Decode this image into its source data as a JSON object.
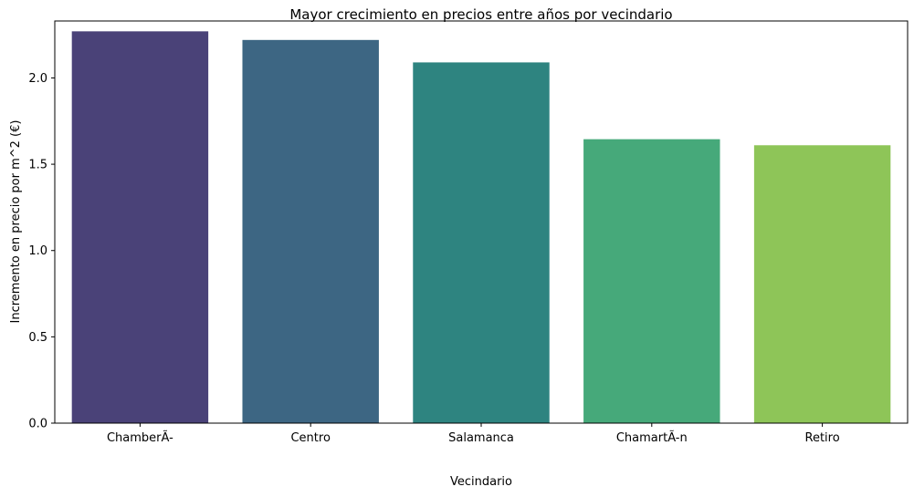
{
  "chart_data": {
    "type": "bar",
    "title": "Mayor crecimiento en precios entre años por vecindario",
    "xlabel": "Vecindario",
    "ylabel": "Incremento en precio por m^2 (€)",
    "categories": [
      "ChamberÃ-",
      "Centro",
      "Salamanca",
      "ChamartÃ-n",
      "Retiro"
    ],
    "values": [
      2.27,
      2.22,
      2.09,
      1.645,
      1.61
    ],
    "colors": [
      "#4a4278",
      "#3d6683",
      "#2e8480",
      "#46a97a",
      "#8ec558"
    ],
    "ylim": [
      0,
      2.33
    ],
    "yticks": [
      "0.0",
      "0.5",
      "1.0",
      "1.5",
      "2.0"
    ],
    "grid": false,
    "legend": "none"
  }
}
